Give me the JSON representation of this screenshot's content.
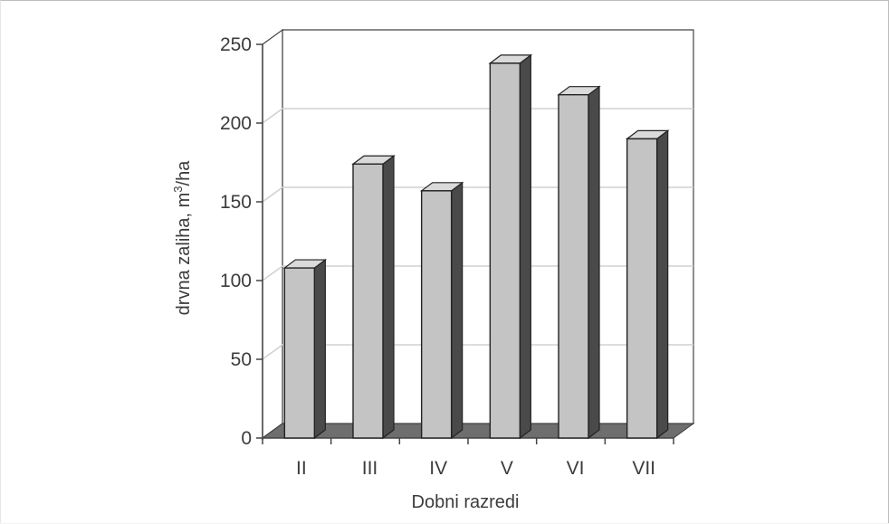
{
  "chart_data": {
    "type": "bar",
    "categories": [
      "II",
      "III",
      "IV",
      "V",
      "VI",
      "VII"
    ],
    "values": [
      108,
      174,
      157,
      238,
      218,
      190
    ],
    "xlabel": "Dobni razredi",
    "ylabel": {
      "text_main": "drvna zaliha, m",
      "superscript": "3",
      "text_unit": "/ha"
    },
    "ylim": [
      0,
      250
    ],
    "yticks": [
      0,
      50,
      100,
      150,
      200,
      250
    ],
    "grid": true,
    "style": "3d-column",
    "colors": {
      "bar_front": "#c4c4c4",
      "bar_side": "#4a4a4a",
      "bar_top": "#dadada",
      "floor": "#6e6e6e",
      "gridline": "#d0d0d0",
      "axis": "#444444"
    }
  }
}
